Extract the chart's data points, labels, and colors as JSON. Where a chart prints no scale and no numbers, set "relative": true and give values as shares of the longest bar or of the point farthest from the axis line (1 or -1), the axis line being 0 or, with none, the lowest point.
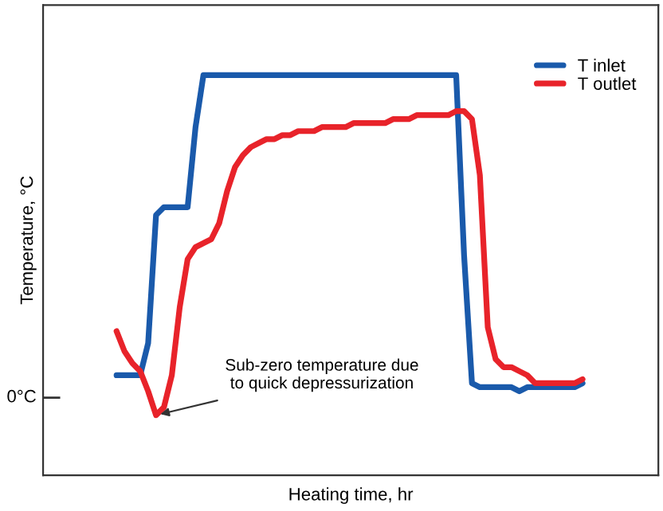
{
  "chart_data": {
    "type": "line",
    "relative": true,
    "xlabel": "Heating time, hr",
    "ylabel": "Temperature, °C",
    "categories": [
      null,
      null,
      null,
      null,
      null,
      null,
      null,
      null,
      null,
      null,
      null,
      null,
      null,
      null,
      null,
      null,
      null,
      null,
      null,
      null,
      null,
      null,
      null,
      null,
      null,
      null,
      null,
      null,
      null,
      null,
      null,
      null,
      null,
      null,
      null,
      null,
      null,
      null,
      null,
      null,
      null,
      null,
      null,
      null,
      null,
      null,
      null,
      null,
      null,
      null,
      null,
      null,
      null,
      null,
      null,
      null,
      null,
      null,
      null,
      null
    ],
    "series": [
      {
        "name": "T inlet",
        "color": "#1a5aab",
        "values": [
          0.25,
          0.25,
          0.25,
          0.25,
          0.33,
          0.65,
          0.67,
          0.67,
          0.67,
          0.67,
          0.87,
          1.0,
          1.0,
          1.0,
          1.0,
          1.0,
          1.0,
          1.0,
          1.0,
          1.0,
          1.0,
          1.0,
          1.0,
          1.0,
          1.0,
          1.0,
          1.0,
          1.0,
          1.0,
          1.0,
          1.0,
          1.0,
          1.0,
          1.0,
          1.0,
          1.0,
          1.0,
          1.0,
          1.0,
          1.0,
          1.0,
          1.0,
          1.0,
          1.0,
          0.55,
          0.23,
          0.22,
          0.22,
          0.22,
          0.22,
          0.22,
          0.21,
          0.22,
          0.22,
          0.22,
          0.22,
          0.22,
          0.22,
          0.22,
          0.23
        ]
      },
      {
        "name": "T outlet",
        "color": "#e8232a",
        "values": [
          0.36,
          0.31,
          0.28,
          0.26,
          0.21,
          0.15,
          0.17,
          0.25,
          0.42,
          0.54,
          0.57,
          0.58,
          0.59,
          0.63,
          0.71,
          0.77,
          0.8,
          0.82,
          0.83,
          0.84,
          0.84,
          0.85,
          0.85,
          0.86,
          0.86,
          0.86,
          0.87,
          0.87,
          0.87,
          0.87,
          0.88,
          0.88,
          0.88,
          0.88,
          0.88,
          0.89,
          0.89,
          0.89,
          0.9,
          0.9,
          0.9,
          0.9,
          0.9,
          0.91,
          0.91,
          0.89,
          0.75,
          0.37,
          0.29,
          0.27,
          0.27,
          0.26,
          0.25,
          0.23,
          0.23,
          0.23,
          0.23,
          0.23,
          0.23,
          0.24
        ]
      }
    ],
    "annotations": [
      "0°C",
      "Sub-zero temperature due\nto quick depressurization"
    ],
    "legend": "top right",
    "grid": false,
    "marker": "none",
    "line_style": "solid"
  }
}
